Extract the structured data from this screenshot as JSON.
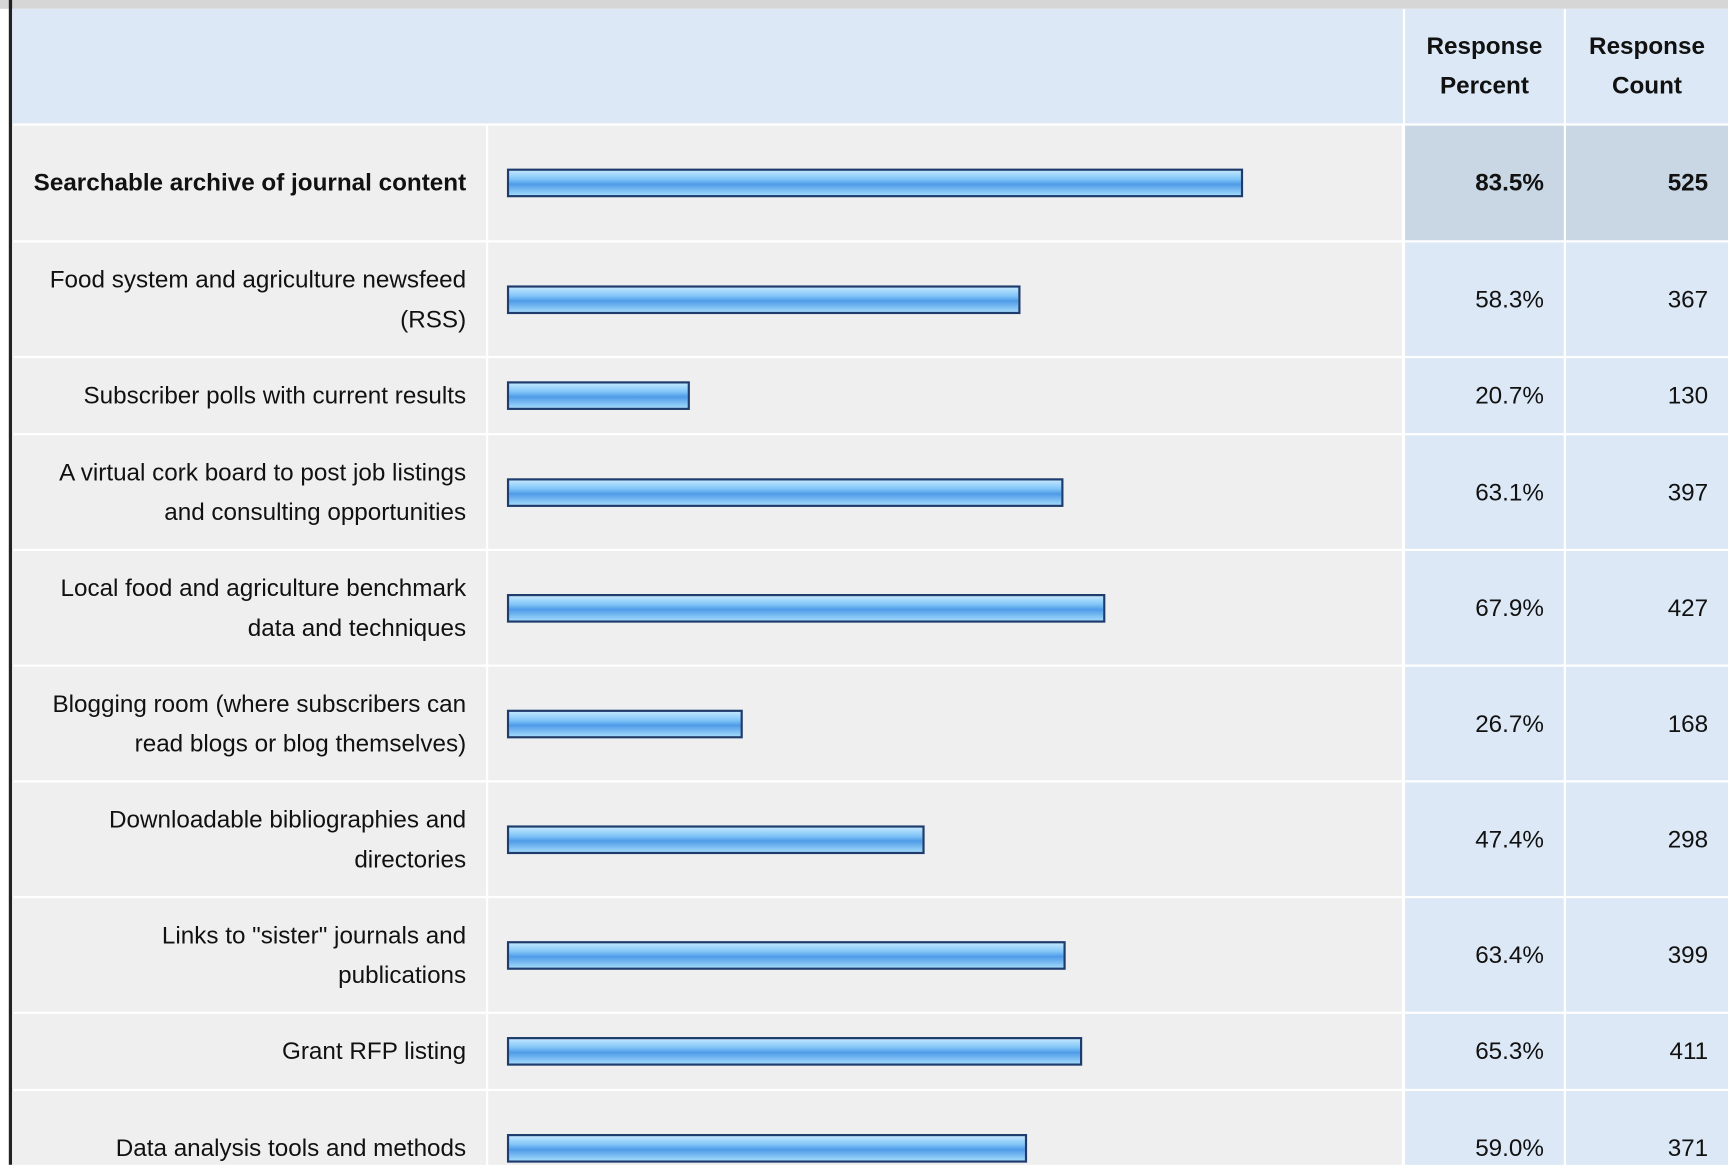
{
  "table": {
    "headers": [
      "Response Percent",
      "Response Count"
    ],
    "rows": [
      {
        "label": "Searchable archive of journal content",
        "percent": 83.5,
        "percent_label": "83.5%",
        "count": 525
      },
      {
        "label": "Food system and agriculture newsfeed (RSS)",
        "percent": 58.3,
        "percent_label": "58.3%",
        "count": 367
      },
      {
        "label": "Subscriber polls with current results",
        "percent": 20.7,
        "percent_label": "20.7%",
        "count": 130
      },
      {
        "label": "A virtual cork board to post job listings and consulting opportunities",
        "percent": 63.1,
        "percent_label": "63.1%",
        "count": 397
      },
      {
        "label": "Local food and agriculture benchmark data and techniques",
        "percent": 67.9,
        "percent_label": "67.9%",
        "count": 427
      },
      {
        "label": "Blogging room (where subscribers can read blogs or blog themselves)",
        "percent": 26.7,
        "percent_label": "26.7%",
        "count": 168
      },
      {
        "label": "Downloadable bibliographies and directories",
        "percent": 47.4,
        "percent_label": "47.4%",
        "count": 298
      },
      {
        "label": "Links to \"sister\" journals and publications",
        "percent": 63.4,
        "percent_label": "63.4%",
        "count": 399
      },
      {
        "label": "Grant RFP listing",
        "percent": 65.3,
        "percent_label": "65.3%",
        "count": 411
      },
      {
        "label": "Data analysis tools and methods",
        "percent": 59.0,
        "percent_label": "59.0%",
        "count": 371
      }
    ]
  }
}
